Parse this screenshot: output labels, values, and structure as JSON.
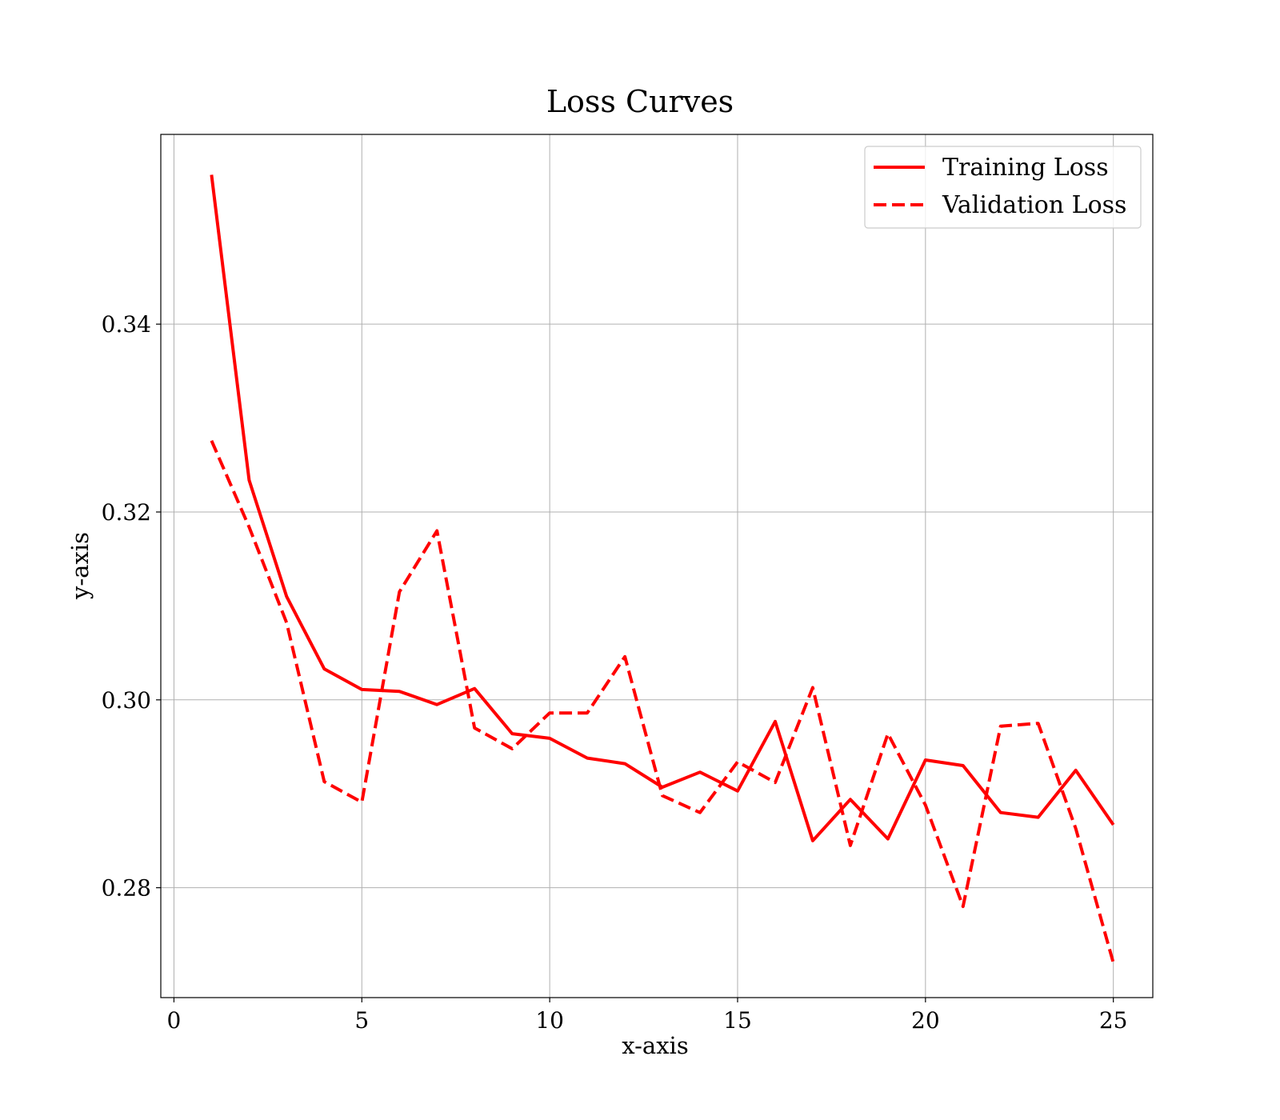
{
  "chart_data": {
    "type": "line",
    "title": "Loss Curves",
    "xlabel": "x-axis",
    "ylabel": "y-axis",
    "xlim": [
      -0.35,
      26.05
    ],
    "ylim": [
      0.2683,
      0.3602
    ],
    "xticks": [
      0,
      5,
      10,
      15,
      20,
      25
    ],
    "xtick_labels": [
      "0",
      "5",
      "10",
      "15",
      "20",
      "25"
    ],
    "yticks": [
      0.28,
      0.3,
      0.32,
      0.34
    ],
    "ytick_labels": [
      "0.28",
      "0.30",
      "0.32",
      "0.34"
    ],
    "grid": true,
    "legend_position": "upper-right",
    "x": [
      1,
      2,
      3,
      4,
      5,
      6,
      7,
      8,
      9,
      10,
      11,
      12,
      13,
      14,
      15,
      16,
      17,
      18,
      19,
      20,
      21,
      22,
      23,
      24,
      25
    ],
    "series": [
      {
        "name": "Training Loss",
        "style": "solid",
        "color": "#ff0000",
        "values": [
          0.3559,
          0.3234,
          0.311,
          0.3033,
          0.3011,
          0.3009,
          0.2995,
          0.3012,
          0.2964,
          0.2959,
          0.2938,
          0.2932,
          0.2907,
          0.2923,
          0.2903,
          0.2977,
          0.285,
          0.2894,
          0.2852,
          0.2936,
          0.293,
          0.288,
          0.2875,
          0.2925,
          0.2867
        ]
      },
      {
        "name": "Validation Loss",
        "style": "dashed",
        "color": "#ff0000",
        "values": [
          0.3276,
          0.3184,
          0.3082,
          0.2913,
          0.2891,
          0.3115,
          0.318,
          0.297,
          0.2948,
          0.2986,
          0.2986,
          0.3046,
          0.2898,
          0.288,
          0.2934,
          0.2912,
          0.3013,
          0.2845,
          0.2964,
          0.2888,
          0.278,
          0.2972,
          0.2975,
          0.2863,
          0.272
        ]
      }
    ]
  }
}
